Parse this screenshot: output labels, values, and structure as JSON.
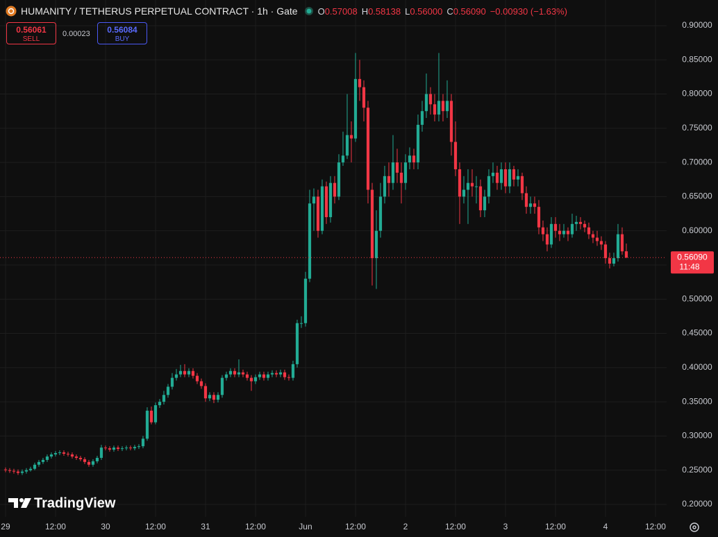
{
  "header": {
    "symbol": "HUMANITY / TETHERUS PERPETUAL CONTRACT · 1h · Gate",
    "legend": {
      "o_label": "O",
      "open": "0.57008",
      "h_label": "H",
      "high": "0.58138",
      "l_label": "L",
      "low": "0.56000",
      "c_label": "C",
      "close": "0.56090",
      "change": "−0.00930 (−1.63%)"
    },
    "sell_price": "0.56061",
    "sell_label": "SELL",
    "spread": "0.00023",
    "buy_price": "0.56084",
    "buy_label": "BUY"
  },
  "watermark": "TradingView",
  "chart_data": {
    "type": "candlestick",
    "up_color": "#22ab94",
    "down_color": "#f23645",
    "grid": true,
    "last_price_label": "0.56090",
    "countdown": "11:48",
    "xlim": [
      -1.33,
      158.67
    ],
    "xticks": [
      {
        "value": 0,
        "label": "29"
      },
      {
        "value": 12,
        "label": "12:00"
      },
      {
        "value": 24,
        "label": "30"
      },
      {
        "value": 36,
        "label": "12:00"
      },
      {
        "value": 48,
        "label": "31"
      },
      {
        "value": 60,
        "label": "12:00"
      },
      {
        "value": 72,
        "label": "Jun"
      },
      {
        "value": 84,
        "label": "12:00"
      },
      {
        "value": 96,
        "label": "2"
      },
      {
        "value": 108,
        "label": "12:00"
      },
      {
        "value": 120,
        "label": "3"
      },
      {
        "value": 132,
        "label": "12:00"
      },
      {
        "value": 144,
        "label": "4"
      },
      {
        "value": 156,
        "label": "12:00"
      }
    ],
    "ylim": [
      0.1817,
      0.9375
    ],
    "yticks": [
      {
        "value": 0.2,
        "label": "0.20000"
      },
      {
        "value": 0.25,
        "label": "0.25000"
      },
      {
        "value": 0.3,
        "label": "0.30000"
      },
      {
        "value": 0.35,
        "label": "0.35000"
      },
      {
        "value": 0.4,
        "label": "0.40000"
      },
      {
        "value": 0.45,
        "label": "0.45000"
      },
      {
        "value": 0.5,
        "label": "0.50000"
      },
      {
        "value": 0.55,
        "label": "0.55000"
      },
      {
        "value": 0.6,
        "label": "0.60000"
      },
      {
        "value": 0.65,
        "label": "0.65000"
      },
      {
        "value": 0.7,
        "label": "0.70000"
      },
      {
        "value": 0.75,
        "label": "0.75000"
      },
      {
        "value": 0.8,
        "label": "0.80000"
      },
      {
        "value": 0.85,
        "label": "0.85000"
      },
      {
        "value": 0.9,
        "label": "0.90000"
      }
    ],
    "ohlc": [
      [
        0.251,
        0.254,
        0.247,
        0.25
      ],
      [
        0.25,
        0.253,
        0.246,
        0.249
      ],
      [
        0.249,
        0.252,
        0.245,
        0.248
      ],
      [
        0.248,
        0.251,
        0.243,
        0.246
      ],
      [
        0.246,
        0.251,
        0.243,
        0.248
      ],
      [
        0.248,
        0.253,
        0.245,
        0.25
      ],
      [
        0.25,
        0.255,
        0.248,
        0.252
      ],
      [
        0.252,
        0.261,
        0.25,
        0.258
      ],
      [
        0.258,
        0.265,
        0.255,
        0.262
      ],
      [
        0.262,
        0.268,
        0.259,
        0.265
      ],
      [
        0.265,
        0.273,
        0.262,
        0.27
      ],
      [
        0.27,
        0.276,
        0.267,
        0.273
      ],
      [
        0.273,
        0.278,
        0.27,
        0.275
      ],
      [
        0.275,
        0.279,
        0.272,
        0.276
      ],
      [
        0.276,
        0.279,
        0.271,
        0.274
      ],
      [
        0.274,
        0.277,
        0.27,
        0.273
      ],
      [
        0.273,
        0.276,
        0.267,
        0.27
      ],
      [
        0.27,
        0.273,
        0.265,
        0.268
      ],
      [
        0.268,
        0.271,
        0.263,
        0.266
      ],
      [
        0.266,
        0.269,
        0.259,
        0.262
      ],
      [
        0.262,
        0.265,
        0.255,
        0.258
      ],
      [
        0.258,
        0.266,
        0.255,
        0.263
      ],
      [
        0.263,
        0.271,
        0.26,
        0.268
      ],
      [
        0.268,
        0.287,
        0.265,
        0.283
      ],
      [
        0.283,
        0.286,
        0.279,
        0.282
      ],
      [
        0.282,
        0.285,
        0.277,
        0.28
      ],
      [
        0.28,
        0.286,
        0.277,
        0.283
      ],
      [
        0.283,
        0.286,
        0.278,
        0.281
      ],
      [
        0.281,
        0.285,
        0.278,
        0.282
      ],
      [
        0.282,
        0.286,
        0.279,
        0.283
      ],
      [
        0.283,
        0.286,
        0.279,
        0.282
      ],
      [
        0.282,
        0.287,
        0.279,
        0.284
      ],
      [
        0.284,
        0.288,
        0.281,
        0.285
      ],
      [
        0.285,
        0.3,
        0.282,
        0.296
      ],
      [
        0.296,
        0.342,
        0.293,
        0.337
      ],
      [
        0.337,
        0.343,
        0.317,
        0.32
      ],
      [
        0.32,
        0.349,
        0.317,
        0.345
      ],
      [
        0.345,
        0.354,
        0.341,
        0.35
      ],
      [
        0.35,
        0.366,
        0.346,
        0.36
      ],
      [
        0.36,
        0.376,
        0.356,
        0.372
      ],
      [
        0.372,
        0.392,
        0.368,
        0.385
      ],
      [
        0.385,
        0.398,
        0.381,
        0.39
      ],
      [
        0.39,
        0.404,
        0.386,
        0.395
      ],
      [
        0.395,
        0.405,
        0.386,
        0.39
      ],
      [
        0.39,
        0.399,
        0.386,
        0.395
      ],
      [
        0.395,
        0.399,
        0.384,
        0.388
      ],
      [
        0.388,
        0.392,
        0.376,
        0.38
      ],
      [
        0.38,
        0.384,
        0.369,
        0.373
      ],
      [
        0.373,
        0.377,
        0.35,
        0.355
      ],
      [
        0.355,
        0.364,
        0.351,
        0.36
      ],
      [
        0.36,
        0.364,
        0.348,
        0.353
      ],
      [
        0.353,
        0.364,
        0.349,
        0.36
      ],
      [
        0.36,
        0.389,
        0.356,
        0.385
      ],
      [
        0.385,
        0.394,
        0.381,
        0.39
      ],
      [
        0.39,
        0.399,
        0.386,
        0.395
      ],
      [
        0.395,
        0.399,
        0.386,
        0.39
      ],
      [
        0.39,
        0.412,
        0.386,
        0.393
      ],
      [
        0.393,
        0.397,
        0.386,
        0.39
      ],
      [
        0.39,
        0.394,
        0.381,
        0.385
      ],
      [
        0.385,
        0.389,
        0.366,
        0.38
      ],
      [
        0.38,
        0.39,
        0.376,
        0.386
      ],
      [
        0.386,
        0.394,
        0.382,
        0.39
      ],
      [
        0.39,
        0.394,
        0.381,
        0.385
      ],
      [
        0.385,
        0.394,
        0.381,
        0.39
      ],
      [
        0.39,
        0.396,
        0.386,
        0.392
      ],
      [
        0.392,
        0.396,
        0.386,
        0.39
      ],
      [
        0.39,
        0.397,
        0.386,
        0.393
      ],
      [
        0.393,
        0.397,
        0.382,
        0.386
      ],
      [
        0.386,
        0.39,
        0.381,
        0.385
      ],
      [
        0.385,
        0.41,
        0.381,
        0.405
      ],
      [
        0.405,
        0.47,
        0.4,
        0.465
      ],
      [
        0.465,
        0.475,
        0.458,
        0.465
      ],
      [
        0.465,
        0.54,
        0.46,
        0.53
      ],
      [
        0.53,
        0.66,
        0.525,
        0.64
      ],
      [
        0.64,
        0.662,
        0.6,
        0.65
      ],
      [
        0.65,
        0.66,
        0.59,
        0.6
      ],
      [
        0.6,
        0.675,
        0.595,
        0.665
      ],
      [
        0.665,
        0.672,
        0.61,
        0.62
      ],
      [
        0.62,
        0.68,
        0.612,
        0.67
      ],
      [
        0.67,
        0.68,
        0.64,
        0.65
      ],
      [
        0.65,
        0.712,
        0.645,
        0.7
      ],
      [
        0.7,
        0.745,
        0.695,
        0.71
      ],
      [
        0.71,
        0.8,
        0.705,
        0.74
      ],
      [
        0.74,
        0.76,
        0.7,
        0.735
      ],
      [
        0.735,
        0.86,
        0.73,
        0.822
      ],
      [
        0.822,
        0.85,
        0.79,
        0.81
      ],
      [
        0.81,
        0.82,
        0.76,
        0.78
      ],
      [
        0.78,
        0.79,
        0.64,
        0.66
      ],
      [
        0.66,
        0.67,
        0.52,
        0.56
      ],
      [
        0.56,
        0.63,
        0.515,
        0.6
      ],
      [
        0.6,
        0.67,
        0.59,
        0.65
      ],
      [
        0.65,
        0.695,
        0.64,
        0.68
      ],
      [
        0.68,
        0.7,
        0.65,
        0.67
      ],
      [
        0.67,
        0.74,
        0.66,
        0.7
      ],
      [
        0.7,
        0.72,
        0.67,
        0.685
      ],
      [
        0.685,
        0.7,
        0.64,
        0.67
      ],
      [
        0.67,
        0.712,
        0.66,
        0.7
      ],
      [
        0.7,
        0.722,
        0.69,
        0.71
      ],
      [
        0.71,
        0.72,
        0.69,
        0.7
      ],
      [
        0.7,
        0.77,
        0.69,
        0.755
      ],
      [
        0.755,
        0.79,
        0.745,
        0.775
      ],
      [
        0.775,
        0.83,
        0.765,
        0.8
      ],
      [
        0.8,
        0.81,
        0.77,
        0.785
      ],
      [
        0.785,
        0.8,
        0.76,
        0.77
      ],
      [
        0.77,
        0.86,
        0.76,
        0.79
      ],
      [
        0.79,
        0.8,
        0.76,
        0.775
      ],
      [
        0.775,
        0.82,
        0.765,
        0.79
      ],
      [
        0.79,
        0.8,
        0.71,
        0.73
      ],
      [
        0.73,
        0.76,
        0.68,
        0.69
      ],
      [
        0.69,
        0.7,
        0.61,
        0.65
      ],
      [
        0.65,
        0.68,
        0.64,
        0.66
      ],
      [
        0.66,
        0.69,
        0.61,
        0.67
      ],
      [
        0.67,
        0.69,
        0.65,
        0.665
      ],
      [
        0.665,
        0.68,
        0.64,
        0.665
      ],
      [
        0.665,
        0.675,
        0.62,
        0.63
      ],
      [
        0.63,
        0.66,
        0.62,
        0.65
      ],
      [
        0.65,
        0.69,
        0.64,
        0.68
      ],
      [
        0.68,
        0.7,
        0.67,
        0.685
      ],
      [
        0.685,
        0.695,
        0.66,
        0.67
      ],
      [
        0.67,
        0.7,
        0.66,
        0.69
      ],
      [
        0.69,
        0.7,
        0.655,
        0.665
      ],
      [
        0.665,
        0.7,
        0.655,
        0.69
      ],
      [
        0.69,
        0.695,
        0.665,
        0.675
      ],
      [
        0.675,
        0.69,
        0.665,
        0.68
      ],
      [
        0.68,
        0.685,
        0.645,
        0.655
      ],
      [
        0.655,
        0.665,
        0.625,
        0.635
      ],
      [
        0.635,
        0.65,
        0.625,
        0.64
      ],
      [
        0.64,
        0.65,
        0.625,
        0.635
      ],
      [
        0.635,
        0.645,
        0.595,
        0.605
      ],
      [
        0.605,
        0.615,
        0.585,
        0.595
      ],
      [
        0.595,
        0.605,
        0.57,
        0.58
      ],
      [
        0.58,
        0.62,
        0.575,
        0.61
      ],
      [
        0.61,
        0.62,
        0.59,
        0.6
      ],
      [
        0.6,
        0.61,
        0.585,
        0.595
      ],
      [
        0.595,
        0.61,
        0.59,
        0.6
      ],
      [
        0.6,
        0.605,
        0.585,
        0.595
      ],
      [
        0.595,
        0.625,
        0.59,
        0.61
      ],
      [
        0.61,
        0.622,
        0.6,
        0.613
      ],
      [
        0.613,
        0.62,
        0.602,
        0.61
      ],
      [
        0.61,
        0.615,
        0.598,
        0.605
      ],
      [
        0.605,
        0.612,
        0.588,
        0.595
      ],
      [
        0.595,
        0.6,
        0.582,
        0.59
      ],
      [
        0.59,
        0.6,
        0.578,
        0.585
      ],
      [
        0.585,
        0.592,
        0.572,
        0.58
      ],
      [
        0.58,
        0.585,
        0.552,
        0.56
      ],
      [
        0.56,
        0.568,
        0.545,
        0.552
      ],
      [
        0.552,
        0.568,
        0.548,
        0.56
      ],
      [
        0.56,
        0.61,
        0.555,
        0.595
      ],
      [
        0.595,
        0.605,
        0.565,
        0.57
      ],
      [
        0.57008,
        0.58138,
        0.56,
        0.5609
      ]
    ]
  }
}
